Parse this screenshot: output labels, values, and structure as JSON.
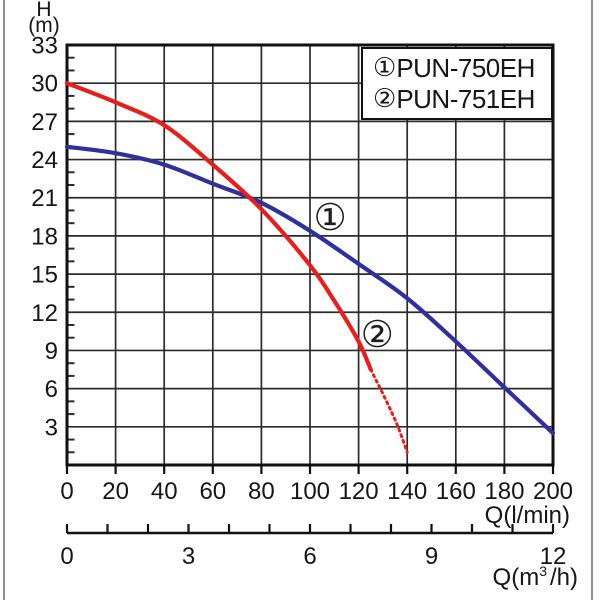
{
  "chart_data": {
    "type": "line",
    "title": "",
    "y_axis": {
      "label": "H",
      "unit": "(m)",
      "ticks": [
        3,
        6,
        9,
        12,
        15,
        18,
        21,
        24,
        27,
        30,
        33
      ],
      "minor_tick_step": 1,
      "range": [
        0,
        33
      ]
    },
    "x_axis": {
      "label": "Q(l/min)",
      "ticks": [
        0,
        20,
        40,
        60,
        80,
        100,
        120,
        140,
        160,
        180,
        200
      ],
      "range": [
        0,
        200
      ]
    },
    "x_axis_secondary": {
      "label_prefix": "Q(m",
      "label_sup": "3",
      "label_suffix": "/h)",
      "ticks": [
        0,
        3,
        6,
        9,
        12
      ],
      "minor_tick_step": 1,
      "range": [
        0,
        12
      ]
    },
    "grid": true,
    "legend": {
      "position": "top-right",
      "entries": [
        {
          "marker": "①",
          "label": "PUN-750EH"
        },
        {
          "marker": "②",
          "label": "PUN-751EH"
        }
      ]
    },
    "series": [
      {
        "name": "PUN-750EH",
        "marker": "①",
        "color": "#30309c",
        "style": "solid",
        "points": [
          [
            0,
            25
          ],
          [
            20,
            24.5
          ],
          [
            40,
            23.6
          ],
          [
            60,
            22.1
          ],
          [
            80,
            20.6
          ],
          [
            100,
            18.4
          ],
          [
            120,
            15.8
          ],
          [
            140,
            13.1
          ],
          [
            160,
            9.7
          ],
          [
            180,
            6.1
          ],
          [
            200,
            2.5
          ]
        ]
      },
      {
        "name": "PUN-751EH",
        "marker": "②",
        "color": "#e3201e",
        "style": "solid",
        "points": [
          [
            0,
            30
          ],
          [
            20,
            28.5
          ],
          [
            40,
            26.7
          ],
          [
            60,
            23.6
          ],
          [
            80,
            20.1
          ],
          [
            100,
            15.7
          ],
          [
            110,
            12.9
          ],
          [
            120,
            9.7
          ],
          [
            125,
            7.5
          ]
        ],
        "dotted_extension": [
          [
            125,
            7.5
          ],
          [
            131,
            5.2
          ],
          [
            136,
            3.1
          ],
          [
            140,
            1.0
          ]
        ]
      }
    ],
    "annotations": [
      {
        "text": "①",
        "q": 108.3,
        "h": 19.3
      },
      {
        "text": "②",
        "q": 127.7,
        "h": 10.1
      }
    ],
    "colors": {
      "grid": "#2b2b2b",
      "border": "#101010",
      "text": "#161616",
      "frame": "#8f8f8f"
    }
  }
}
